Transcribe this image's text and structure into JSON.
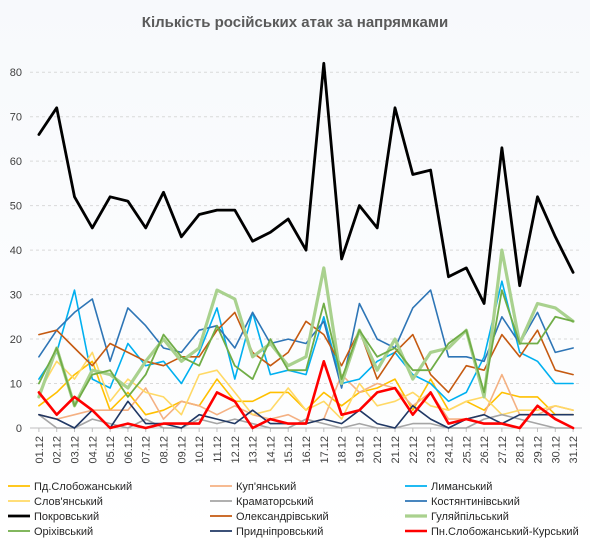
{
  "chart_data": {
    "type": "line",
    "title": "Кількість російських атак за напрямками",
    "xlabel": "",
    "ylabel": "",
    "ylim": [
      0,
      85
    ],
    "yticks": [
      0,
      10,
      20,
      30,
      40,
      50,
      60,
      70,
      80
    ],
    "grid": "horizontal dashed",
    "legend_position": "bottom",
    "categories": [
      "01.12",
      "02.12",
      "03.12",
      "04.12",
      "05.12",
      "06.12",
      "07.12",
      "08.12",
      "09.12",
      "10.12",
      "11.12",
      "12.12",
      "13.12",
      "14.12",
      "15.12",
      "16.12",
      "17.12",
      "18.12",
      "19.12",
      "20.12",
      "21.12",
      "22.12",
      "23.12",
      "24.12",
      "25.12",
      "26.12",
      "27.12",
      "28.12",
      "29.12",
      "30.12",
      "31.12"
    ],
    "series": [
      {
        "name": "Пд.Слобожанський",
        "color": "#FFC000",
        "values": [
          5,
          8,
          12,
          15,
          4,
          8,
          3,
          4,
          6,
          5,
          11,
          6,
          6,
          8,
          8,
          4,
          8,
          5,
          8,
          9,
          11,
          4,
          11,
          4,
          6,
          4,
          8,
          7,
          7,
          3,
          3
        ]
      },
      {
        "name": "Куп'янський",
        "color": "#F4B183",
        "values": [
          3,
          2,
          3,
          4,
          4,
          4,
          9,
          2,
          6,
          5,
          3,
          5,
          3,
          2,
          3,
          1,
          2,
          12,
          8,
          10,
          9,
          5,
          8,
          2,
          2,
          3,
          12,
          3,
          3,
          5,
          4
        ]
      },
      {
        "name": "Лиманський",
        "color": "#00B0F0",
        "values": [
          11,
          17,
          31,
          11,
          9,
          19,
          14,
          15,
          10,
          17,
          27,
          11,
          26,
          12,
          13,
          12,
          25,
          10,
          11,
          15,
          17,
          12,
          10,
          6,
          8,
          16,
          33,
          17,
          15,
          10,
          10
        ]
      },
      {
        "name": "Слов'янський",
        "color": "#FFD966",
        "values": [
          8,
          15,
          11,
          17,
          6,
          11,
          8,
          7,
          3,
          12,
          13,
          8,
          3,
          4,
          9,
          4,
          6,
          2,
          10,
          5,
          6,
          8,
          5,
          4,
          6,
          7,
          3,
          4,
          4,
          5,
          4
        ]
      },
      {
        "name": "Краматорський",
        "color": "#A5A5A5",
        "values": [
          3,
          0,
          0,
          2,
          1,
          0,
          2,
          0,
          0,
          2,
          1,
          2,
          1,
          0,
          0,
          2,
          1,
          0,
          1,
          0,
          0,
          1,
          1,
          0,
          0,
          2,
          3,
          2,
          1,
          0,
          0
        ]
      },
      {
        "name": "Костянтинівський",
        "color": "#2E75B6",
        "values": [
          16,
          22,
          26,
          29,
          15,
          27,
          23,
          18,
          17,
          22,
          23,
          18,
          26,
          19,
          20,
          19,
          24,
          9,
          28,
          20,
          18,
          27,
          31,
          16,
          16,
          15,
          25,
          19,
          26,
          17,
          18
        ]
      },
      {
        "name": "Покровський",
        "color": "#000000",
        "values": [
          66,
          72,
          52,
          45,
          52,
          51,
          45,
          53,
          43,
          48,
          49,
          49,
          42,
          44,
          47,
          40,
          82,
          38,
          50,
          45,
          72,
          57,
          58,
          34,
          36,
          28,
          63,
          32,
          52,
          43,
          35
        ]
      },
      {
        "name": "Олександрівський",
        "color": "#C55A11",
        "values": [
          21,
          22,
          18,
          14,
          19,
          17,
          15,
          14,
          16,
          16,
          22,
          26,
          17,
          14,
          17,
          24,
          21,
          14,
          22,
          11,
          17,
          21,
          12,
          8,
          14,
          13,
          21,
          16,
          22,
          13,
          12
        ]
      },
      {
        "name": "Гуляйпільський",
        "color": "#A9D18E",
        "values": [
          7,
          18,
          5,
          13,
          12,
          9,
          15,
          20,
          15,
          18,
          31,
          29,
          16,
          19,
          14,
          16,
          36,
          10,
          22,
          13,
          20,
          11,
          17,
          18,
          22,
          7,
          40,
          19,
          28,
          27,
          24
        ]
      },
      {
        "name": "Оріхівський",
        "color": "#70AD47",
        "values": [
          10,
          18,
          5,
          12,
          13,
          7,
          12,
          21,
          16,
          14,
          23,
          14,
          11,
          20,
          13,
          13,
          28,
          11,
          22,
          16,
          18,
          13,
          13,
          19,
          22,
          8,
          31,
          19,
          19,
          25,
          24
        ]
      },
      {
        "name": "Придніпровський",
        "color": "#203864",
        "values": [
          3,
          2,
          0,
          4,
          0,
          6,
          1,
          1,
          0,
          3,
          2,
          1,
          4,
          1,
          1,
          1,
          2,
          1,
          4,
          1,
          0,
          5,
          2,
          0,
          2,
          3,
          1,
          3,
          3,
          3,
          3
        ]
      },
      {
        "name": "Пн.Слобожанський-Курський",
        "color": "#FF0000",
        "values": [
          8,
          3,
          7,
          4,
          0,
          1,
          0,
          1,
          1,
          1,
          8,
          6,
          0,
          2,
          1,
          1,
          15,
          3,
          4,
          8,
          9,
          3,
          8,
          1,
          2,
          1,
          1,
          0,
          5,
          2,
          0
        ]
      }
    ]
  }
}
